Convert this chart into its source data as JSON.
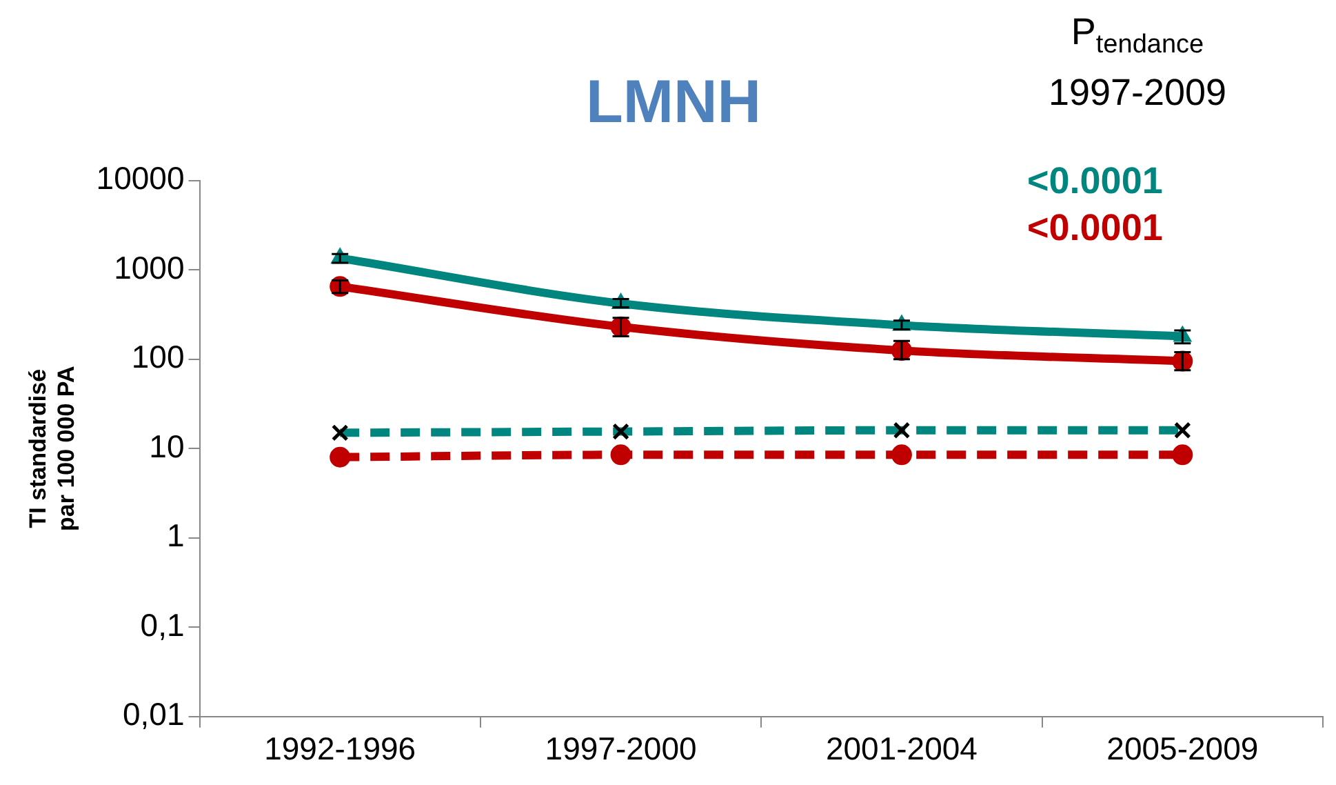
{
  "chart_data": {
    "type": "line",
    "title": "LMNH",
    "ylabel": "TI standardisé\npar 100 000 PA",
    "log": true,
    "grid": false,
    "legend": false,
    "categories": [
      "1992-1996",
      "1997-2000",
      "2001-2004",
      "2005-2009"
    ],
    "ylim": [
      0.01,
      10000
    ],
    "yticks": [
      {
        "value": 0.01,
        "label": "0,01"
      },
      {
        "value": 0.1,
        "label": "0,1"
      },
      1,
      10,
      100,
      1000,
      10000
    ],
    "series": [
      {
        "color": "#00857f",
        "values": [
          1350,
          420,
          240,
          180
        ],
        "errors": [
          [
            1200,
            1500
          ],
          [
            380,
            470
          ],
          [
            215,
            270
          ],
          [
            150,
            210
          ]
        ],
        "marker": "triangle",
        "line_style": "solid"
      },
      {
        "color": "#c00000",
        "values": [
          650,
          230,
          125,
          95
        ],
        "errors": [
          [
            550,
            760
          ],
          [
            180,
            290
          ],
          [
            100,
            160
          ],
          [
            75,
            120
          ]
        ],
        "marker": "circle",
        "line_style": "solid"
      },
      {
        "color": "#00857f",
        "values": [
          15,
          15.5,
          16,
          16
        ],
        "marker": "cross",
        "line_style": "dashed"
      },
      {
        "color": "#c00000",
        "values": [
          8,
          8.5,
          8.5,
          8.5
        ],
        "marker": "circle",
        "line_style": "dashed"
      }
    ],
    "annotations": [
      "P$_{tendance}$",
      "1997-2009",
      "<0.0001",
      "<0.0001"
    ]
  }
}
